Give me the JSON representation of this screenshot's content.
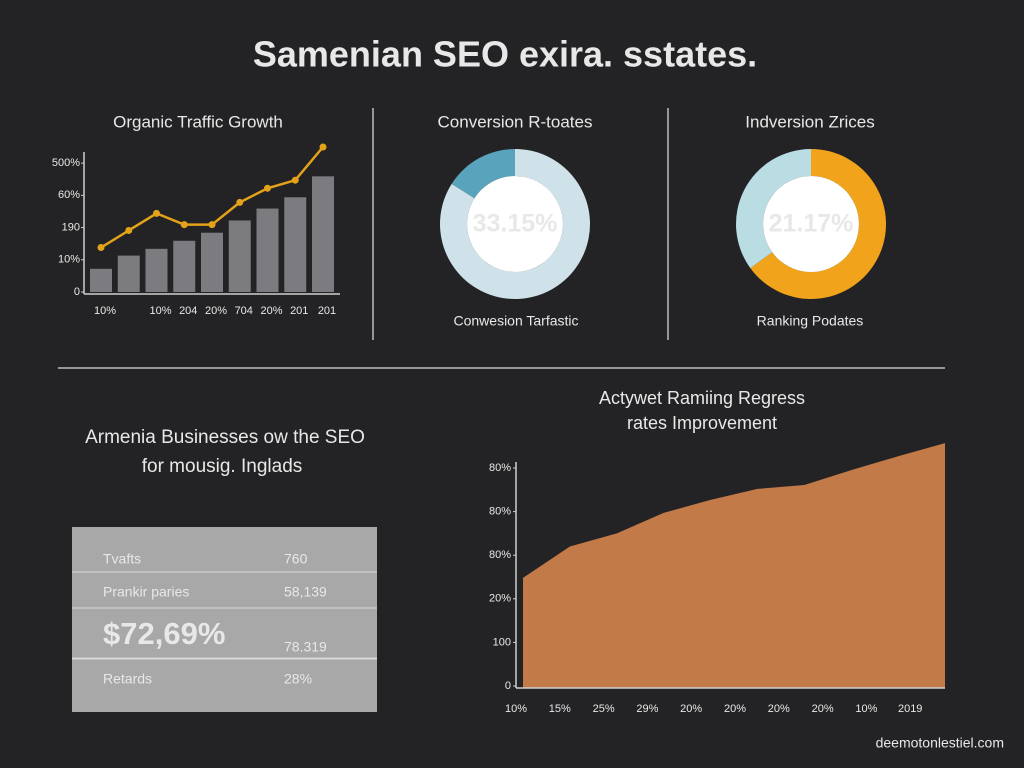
{
  "title": "Samenian SEO exira. sstates.",
  "chart_data": [
    {
      "type": "bar",
      "title": "Organic Traffic Growth",
      "categories": [
        "10%",
        null,
        "10%",
        "204",
        "20%",
        "704",
        "20%",
        "201",
        "201"
      ],
      "series": [
        {
          "type": "bar",
          "color": "#7b7b80",
          "values": [
            7.2,
            11.3,
            13.4,
            15.9,
            18.4,
            22.2,
            25.9,
            29.4,
            35.9
          ]
        },
        {
          "type": "line",
          "color": "#e3a21a",
          "values": [
            13.8,
            19.1,
            24.4,
            20.9,
            20.9,
            27.8,
            32.2,
            34.7,
            45
          ]
        }
      ],
      "ylim": [
        0,
        45
      ],
      "yticks": [
        0,
        {
          "value": 10,
          "label": "10%"
        },
        {
          "value": 20,
          "label": "190"
        },
        {
          "value": 30,
          "label": "60%"
        },
        {
          "value": 40,
          "label": "500%"
        }
      ]
    },
    {
      "type": "pie",
      "title": "Conversion R-toates",
      "center_label": "33.15%",
      "caption": "Conwesion Tarfastic",
      "values": [
        84,
        16
      ],
      "colors": [
        "#cfe2ea",
        "#5aa3bd"
      ]
    },
    {
      "type": "pie",
      "title": "Indversion Zrices",
      "center_label": "21.17%",
      "caption": "Ranking Podates",
      "values": [
        65,
        35
      ],
      "colors": [
        "#f2a31c",
        "#b9dde3"
      ]
    },
    {
      "type": "area",
      "title": "Actywet Ramiing Regress",
      "subtitle": "rates Improvement",
      "color": "#c27a48",
      "categories": [
        "10%",
        "15%",
        "25%",
        "29%",
        "20%",
        "20%",
        "20%",
        "20%",
        "10%",
        "2019"
      ],
      "values": [
        2.48,
        3.2,
        3.5,
        3.97,
        4.27,
        4.52,
        4.61,
        4.95,
        5.27,
        5.57
      ],
      "ylim": [
        0,
        6.3
      ],
      "yticks": [
        0,
        {
          "value": 1,
          "label": "100"
        },
        {
          "value": 2,
          "label": "20%"
        },
        {
          "value": 3,
          "label": "80%"
        },
        {
          "value": 4,
          "label": "80%"
        },
        {
          "value": 5,
          "label": "80%"
        }
      ]
    }
  ],
  "section": {
    "heading": [
      "Armenia Businesses ow the SEO",
      "for mousig. Inglads"
    ]
  },
  "table": {
    "rows": [
      [
        "Tvafts",
        "760"
      ],
      [
        "Prankir paries",
        "58,139"
      ],
      [
        "$72,69%",
        "78.319"
      ],
      [
        "Retards",
        "28%"
      ]
    ]
  },
  "footer": "deemotonlestiel.com"
}
